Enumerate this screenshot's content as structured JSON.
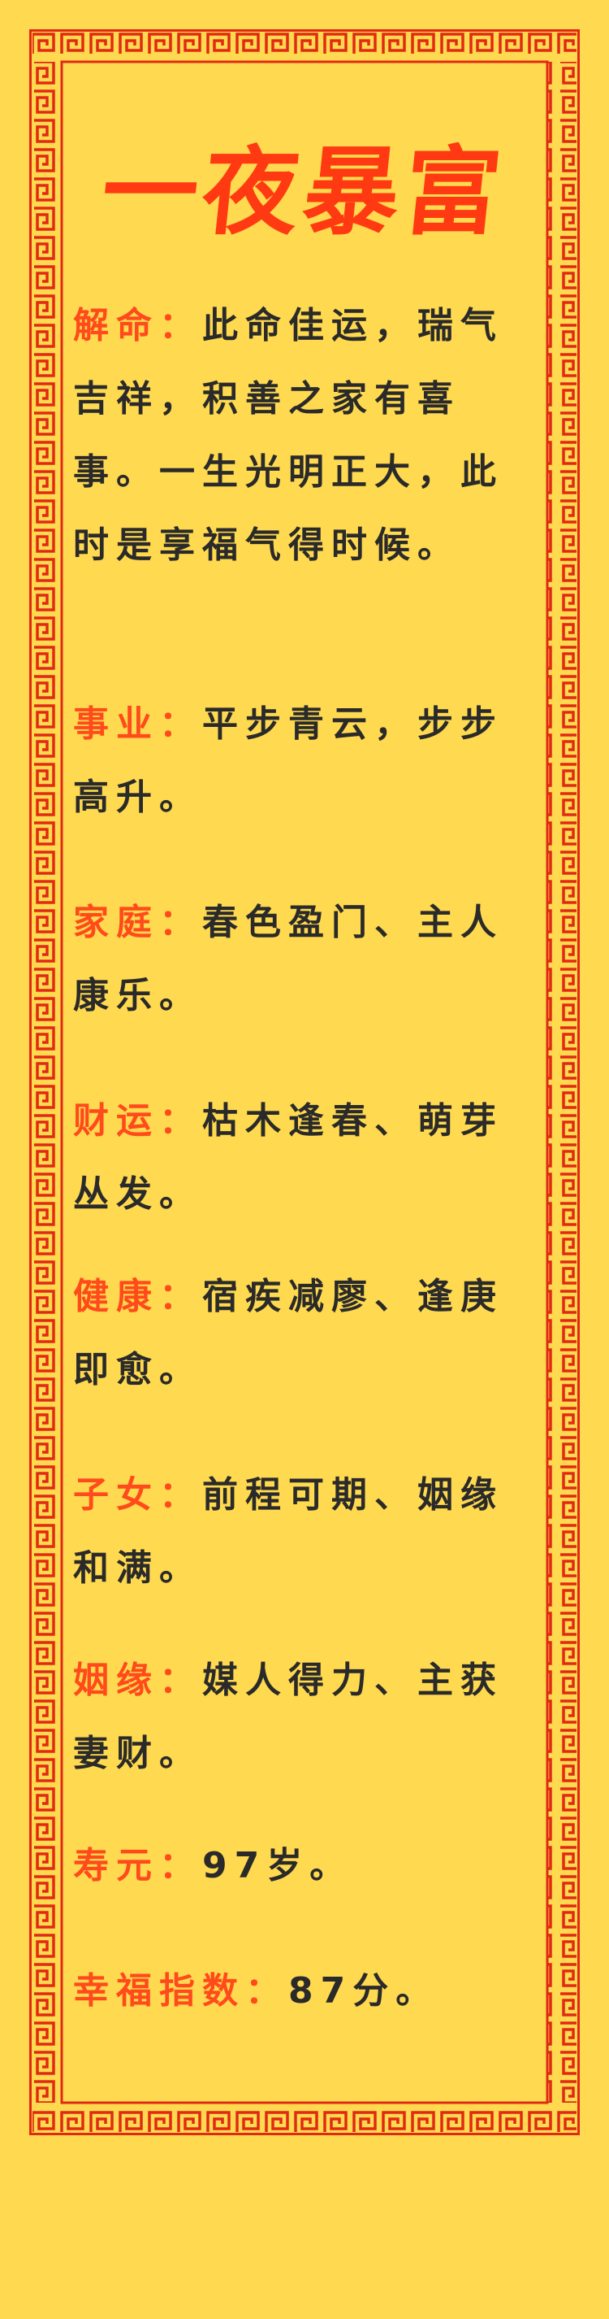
{
  "title": "一夜暴富",
  "entries": [
    {
      "label": "解命：",
      "text": "此命佳运，瑞气吉祥，积善之家有喜事。一生光明正大，此时是享福气得时候。"
    },
    {
      "label": "事业：",
      "text": "平步青云，步步高升。"
    },
    {
      "label": "家庭：",
      "text": "春色盈门、主人康乐。"
    },
    {
      "label": "财运：",
      "text": "枯木逢春、萌芽丛发。"
    },
    {
      "label": "健康：",
      "text": "宿疾减廖、逢庚即愈。"
    },
    {
      "label": "子女：",
      "text": "前程可期、姻缘和满。"
    },
    {
      "label": "姻缘：",
      "text": "媒人得力、主获妻财。"
    },
    {
      "label": "寿元：",
      "text": "97岁。"
    },
    {
      "label": "幸福指数：",
      "text": "87分。"
    }
  ],
  "colors": {
    "background": "#ffd94f",
    "border": "#e02a14",
    "label": "#ff4a1c",
    "title": "#ff3a12",
    "text": "#2a2a2a"
  }
}
